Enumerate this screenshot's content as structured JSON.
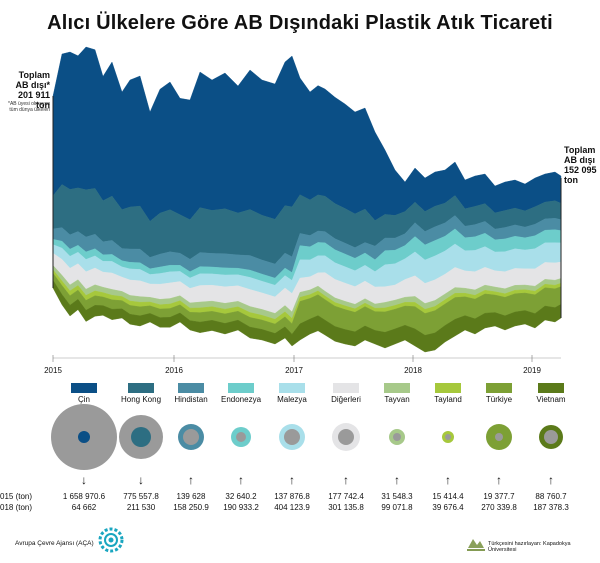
{
  "title": "Alıcı Ülkelere Göre AB Dışındaki Plastik Atık Ticareti",
  "left_total": {
    "lines": [
      "Toplam",
      "AB dışı*",
      "201 911 ton"
    ],
    "note": "*AB üyesi olmayan tüm dünya ülkeleri"
  },
  "right_total": {
    "lines": [
      "Toplam",
      "AB dışı",
      "152 095 ton"
    ]
  },
  "row_labels": {
    "y2015": "015 (ton)",
    "y2018": "018 (ton)"
  },
  "footer": {
    "left": "Avrupa Çevre Ajansı (AÇA)",
    "right": "Türkçesini hazırlayan: Kapadokya Üniversitesi"
  },
  "chart_data": {
    "type": "area",
    "subtype": "streamgraph",
    "title": "Alıcı Ülkelere Göre AB Dışındaki Plastik Atık Ticareti",
    "x_ticks": [
      "2015",
      "2016",
      "2017",
      "2018",
      "2019"
    ],
    "series": [
      {
        "name": "Çin",
        "color": "#0b4f86",
        "value_2015": "1 658 970.6",
        "value_2018": "64 662",
        "trend": "down"
      },
      {
        "name": "Hong Kong",
        "color": "#2d6e82",
        "value_2015": "775 557.8",
        "value_2018": "211 530",
        "trend": "down"
      },
      {
        "name": "Hindistan",
        "color": "#4b8ca4",
        "value_2015": "139 628",
        "value_2018": "158 250.9",
        "trend": "up"
      },
      {
        "name": "Endonezya",
        "color": "#6dcdcb",
        "value_2015": "32 640.2",
        "value_2018": "190 933.2",
        "trend": "up"
      },
      {
        "name": "Malezya",
        "color": "#a9dfea",
        "value_2015": "137 876.8",
        "value_2018": "404 123.9",
        "trend": "up"
      },
      {
        "name": "Diğerleri",
        "color": "#e4e4e6",
        "value_2015": "177 742.4",
        "value_2018": "301 135.8",
        "trend": "up"
      },
      {
        "name": "Tayvan",
        "color": "#a7c98a",
        "value_2015": "31 548.3",
        "value_2018": "99 071.8",
        "trend": "up"
      },
      {
        "name": "Tayland",
        "color": "#a6c83c",
        "value_2015": "15 414.4",
        "value_2018": "39 676.4",
        "trend": "up"
      },
      {
        "name": "Türkiye",
        "color": "#7da035",
        "value_2015": "19 377.7",
        "value_2018": "270 339.8",
        "trend": "up"
      },
      {
        "name": "Vietnam",
        "color": "#5b7a1a",
        "value_2015": "88 760.7",
        "value_2018": "187 378.3",
        "trend": "up"
      }
    ]
  }
}
